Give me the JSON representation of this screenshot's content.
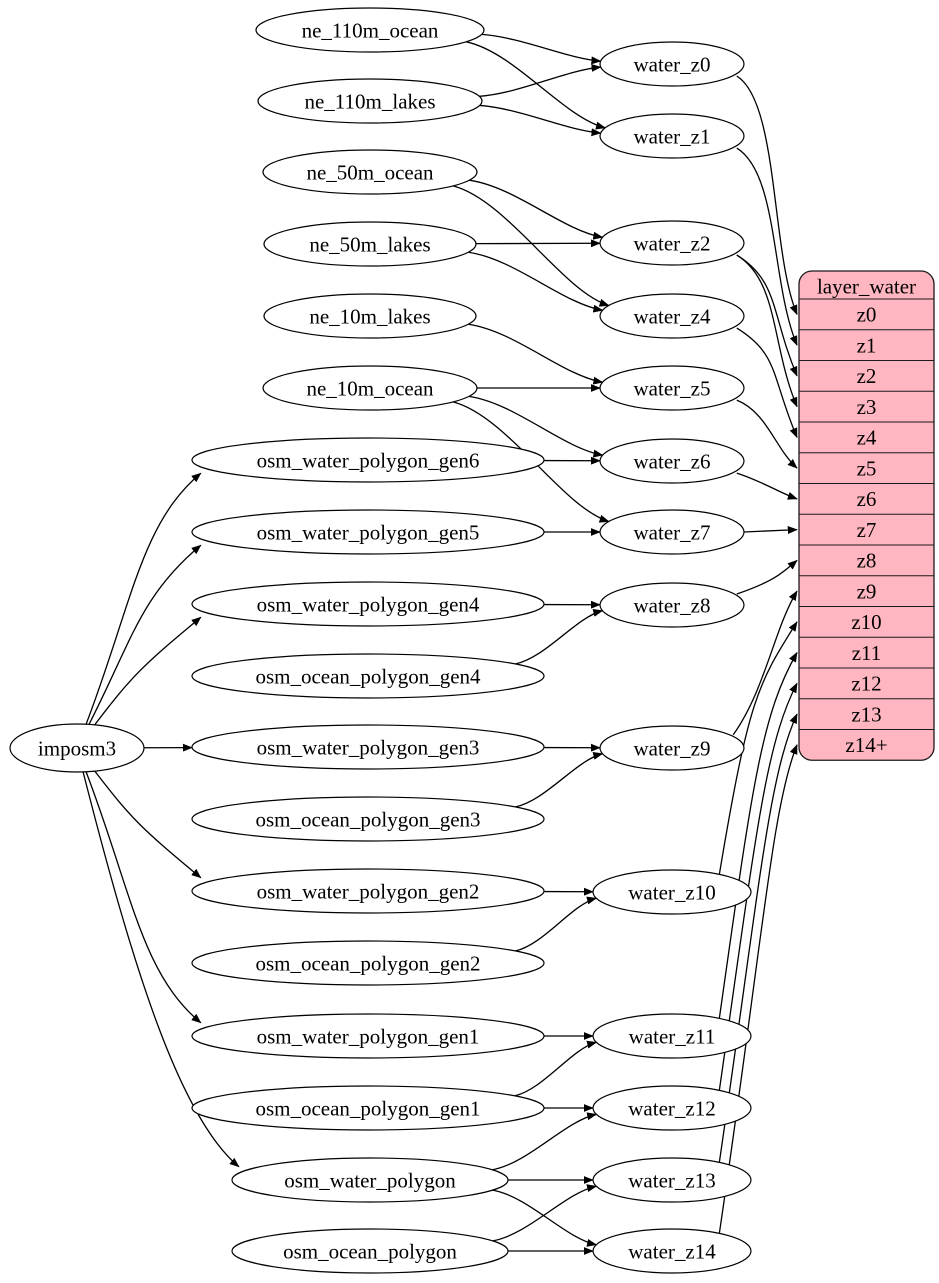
{
  "diagram": {
    "kind": "etl-graph",
    "colors": {
      "table_fill": "#ffb6c1",
      "node_fill": "#ffffff",
      "stroke": "#000000",
      "background": "#ffffff"
    },
    "nodes": [
      {
        "id": "imposm3",
        "label": "imposm3",
        "role": "source"
      },
      {
        "id": "ne_110m_ocean",
        "label": "ne_110m_ocean",
        "role": "source"
      },
      {
        "id": "ne_110m_lakes",
        "label": "ne_110m_lakes",
        "role": "source"
      },
      {
        "id": "ne_50m_ocean",
        "label": "ne_50m_ocean",
        "role": "source"
      },
      {
        "id": "ne_50m_lakes",
        "label": "ne_50m_lakes",
        "role": "source"
      },
      {
        "id": "ne_10m_lakes",
        "label": "ne_10m_lakes",
        "role": "source"
      },
      {
        "id": "ne_10m_ocean",
        "label": "ne_10m_ocean",
        "role": "source"
      },
      {
        "id": "osm_water_polygon_gen6",
        "label": "osm_water_polygon_gen6",
        "role": "source"
      },
      {
        "id": "osm_water_polygon_gen5",
        "label": "osm_water_polygon_gen5",
        "role": "source"
      },
      {
        "id": "osm_water_polygon_gen4",
        "label": "osm_water_polygon_gen4",
        "role": "source"
      },
      {
        "id": "osm_ocean_polygon_gen4",
        "label": "osm_ocean_polygon_gen4",
        "role": "source"
      },
      {
        "id": "osm_water_polygon_gen3",
        "label": "osm_water_polygon_gen3",
        "role": "source"
      },
      {
        "id": "osm_ocean_polygon_gen3",
        "label": "osm_ocean_polygon_gen3",
        "role": "source"
      },
      {
        "id": "osm_water_polygon_gen2",
        "label": "osm_water_polygon_gen2",
        "role": "source"
      },
      {
        "id": "osm_ocean_polygon_gen2",
        "label": "osm_ocean_polygon_gen2",
        "role": "source"
      },
      {
        "id": "osm_water_polygon_gen1",
        "label": "osm_water_polygon_gen1",
        "role": "source"
      },
      {
        "id": "osm_ocean_polygon_gen1",
        "label": "osm_ocean_polygon_gen1",
        "role": "source"
      },
      {
        "id": "osm_water_polygon",
        "label": "osm_water_polygon",
        "role": "source"
      },
      {
        "id": "osm_ocean_polygon",
        "label": "osm_ocean_polygon",
        "role": "source"
      },
      {
        "id": "water_z0",
        "label": "water_z0",
        "role": "transform"
      },
      {
        "id": "water_z1",
        "label": "water_z1",
        "role": "transform"
      },
      {
        "id": "water_z2",
        "label": "water_z2",
        "role": "transform"
      },
      {
        "id": "water_z4",
        "label": "water_z4",
        "role": "transform"
      },
      {
        "id": "water_z5",
        "label": "water_z5",
        "role": "transform"
      },
      {
        "id": "water_z6",
        "label": "water_z6",
        "role": "transform"
      },
      {
        "id": "water_z7",
        "label": "water_z7",
        "role": "transform"
      },
      {
        "id": "water_z8",
        "label": "water_z8",
        "role": "transform"
      },
      {
        "id": "water_z9",
        "label": "water_z9",
        "role": "transform"
      },
      {
        "id": "water_z10",
        "label": "water_z10",
        "role": "transform"
      },
      {
        "id": "water_z11",
        "label": "water_z11",
        "role": "transform"
      },
      {
        "id": "water_z12",
        "label": "water_z12",
        "role": "transform"
      },
      {
        "id": "water_z13",
        "label": "water_z13",
        "role": "transform"
      },
      {
        "id": "water_z14",
        "label": "water_z14",
        "role": "transform"
      }
    ],
    "table": {
      "title": "layer_water",
      "rows": [
        "z0",
        "z1",
        "z2",
        "z3",
        "z4",
        "z5",
        "z6",
        "z7",
        "z8",
        "z9",
        "z10",
        "z11",
        "z12",
        "z13",
        "z14+"
      ]
    },
    "flow_edges": [
      [
        "imposm3",
        "osm_water_polygon_gen6"
      ],
      [
        "imposm3",
        "osm_water_polygon_gen5"
      ],
      [
        "imposm3",
        "osm_water_polygon_gen4"
      ],
      [
        "imposm3",
        "osm_water_polygon_gen3"
      ],
      [
        "imposm3",
        "osm_water_polygon_gen2"
      ],
      [
        "imposm3",
        "osm_water_polygon_gen1"
      ],
      [
        "imposm3",
        "osm_water_polygon"
      ],
      [
        "ne_110m_ocean",
        "water_z0"
      ],
      [
        "ne_110m_ocean",
        "water_z1"
      ],
      [
        "ne_110m_lakes",
        "water_z0"
      ],
      [
        "ne_110m_lakes",
        "water_z1"
      ],
      [
        "ne_50m_ocean",
        "water_z2"
      ],
      [
        "ne_50m_ocean",
        "water_z4"
      ],
      [
        "ne_50m_lakes",
        "water_z2"
      ],
      [
        "ne_50m_lakes",
        "water_z4"
      ],
      [
        "ne_10m_lakes",
        "water_z5"
      ],
      [
        "ne_10m_ocean",
        "water_z5"
      ],
      [
        "ne_10m_ocean",
        "water_z6"
      ],
      [
        "ne_10m_ocean",
        "water_z7"
      ],
      [
        "osm_water_polygon_gen6",
        "water_z6"
      ],
      [
        "osm_water_polygon_gen5",
        "water_z7"
      ],
      [
        "osm_water_polygon_gen4",
        "water_z8"
      ],
      [
        "osm_ocean_polygon_gen4",
        "water_z8"
      ],
      [
        "osm_water_polygon_gen3",
        "water_z9"
      ],
      [
        "osm_ocean_polygon_gen3",
        "water_z9"
      ],
      [
        "osm_water_polygon_gen2",
        "water_z10"
      ],
      [
        "osm_ocean_polygon_gen2",
        "water_z10"
      ],
      [
        "osm_water_polygon_gen1",
        "water_z11"
      ],
      [
        "osm_ocean_polygon_gen1",
        "water_z11"
      ],
      [
        "osm_ocean_polygon_gen1",
        "water_z12"
      ],
      [
        "osm_water_polygon",
        "water_z12"
      ],
      [
        "osm_water_polygon",
        "water_z13"
      ],
      [
        "osm_water_polygon",
        "water_z14"
      ],
      [
        "osm_ocean_polygon",
        "water_z13"
      ],
      [
        "osm_ocean_polygon",
        "water_z14"
      ]
    ],
    "table_edges": [
      [
        "water_z0",
        "z0"
      ],
      [
        "water_z1",
        "z1"
      ],
      [
        "water_z2",
        "z2"
      ],
      [
        "water_z2",
        "z3"
      ],
      [
        "water_z4",
        "z4"
      ],
      [
        "water_z5",
        "z5"
      ],
      [
        "water_z6",
        "z6"
      ],
      [
        "water_z7",
        "z7"
      ],
      [
        "water_z8",
        "z8"
      ],
      [
        "water_z9",
        "z9"
      ],
      [
        "water_z10",
        "z10"
      ],
      [
        "water_z11",
        "z11"
      ],
      [
        "water_z12",
        "z12"
      ],
      [
        "water_z13",
        "z13"
      ],
      [
        "water_z14",
        "z14+"
      ]
    ]
  }
}
